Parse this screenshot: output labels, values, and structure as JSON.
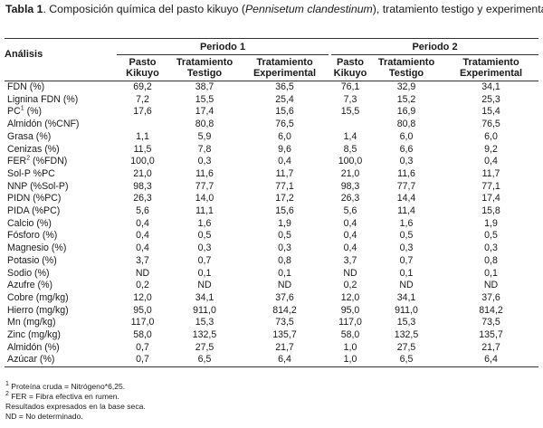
{
  "caption": {
    "label": "Tabla 1",
    "text_before": ". Composición química del pasto kikuyo (",
    "species": "Pennisetum clandestinum",
    "text_after": "), tratamiento testigo y experimental."
  },
  "table": {
    "analysis_header": "Análisis",
    "periods": [
      "Periodo 1",
      "Periodo 2"
    ],
    "columns": [
      [
        "Pasto",
        "Kikuyo"
      ],
      [
        "Tratamiento",
        "Testigo"
      ],
      [
        "Tratamiento",
        "Experimental"
      ],
      [
        "Pasto",
        "Kikuyo"
      ],
      [
        "Tratamiento",
        "Testigo"
      ],
      [
        "Tratamiento",
        "Experimental"
      ]
    ],
    "rows": [
      {
        "name": "FDN (%)",
        "sup": "",
        "name_after": "",
        "values": [
          "69,2",
          "38,7",
          "36,5",
          "76,1",
          "32,9",
          "34,1"
        ]
      },
      {
        "name": "Lignina FDN (%)",
        "sup": "",
        "name_after": "",
        "values": [
          "7,2",
          "15,5",
          "25,4",
          "7,3",
          "15,2",
          "25,3"
        ]
      },
      {
        "name": "PC",
        "sup": "1",
        "name_after": " (%)",
        "values": [
          "17,6",
          "17,4",
          "15,6",
          "15,5",
          "16,9",
          "15,4"
        ]
      },
      {
        "name": "Almidón (%CNF)",
        "sup": "",
        "name_after": "",
        "values": [
          "",
          "80,8",
          "76,5",
          "",
          "80,8",
          "76,5"
        ]
      },
      {
        "name": "Grasa (%)",
        "sup": "",
        "name_after": "",
        "values": [
          "1,1",
          "5,9",
          "6,0",
          "1,4",
          "6,0",
          "6,0"
        ]
      },
      {
        "name": "Cenizas (%)",
        "sup": "",
        "name_after": "",
        "values": [
          "11,5",
          "7,8",
          "9,6",
          "8,5",
          "6,6",
          "9,2"
        ]
      },
      {
        "name": "FER",
        "sup": "2",
        "name_after": " (%FDN)",
        "values": [
          "100,0",
          "0,3",
          "0,4",
          "100,0",
          "0,3",
          "0,4"
        ]
      },
      {
        "name": "Sol-P %PC",
        "sup": "",
        "name_after": "",
        "values": [
          "21,0",
          "11,6",
          "11,7",
          "21,0",
          "11,6",
          "11,7"
        ]
      },
      {
        "name": "NNP (%Sol-P)",
        "sup": "",
        "name_after": "",
        "values": [
          "98,3",
          "77,7",
          "77,1",
          "98,3",
          "77,7",
          "77,1"
        ]
      },
      {
        "name": "PIDN (%PC)",
        "sup": "",
        "name_after": "",
        "values": [
          "26,3",
          "14,0",
          "17,2",
          "26,3",
          "14,4",
          "17,4"
        ]
      },
      {
        "name": "PIDA (%PC)",
        "sup": "",
        "name_after": "",
        "values": [
          "5,6",
          "11,1",
          "15,6",
          "5,6",
          "11,4",
          "15,8"
        ]
      },
      {
        "name": "Calcio (%)",
        "sup": "",
        "name_after": "",
        "values": [
          "0,4",
          "1,6",
          "1,9",
          "0,4",
          "1,6",
          "1,9"
        ]
      },
      {
        "name": "Fósforo (%)",
        "sup": "",
        "name_after": "",
        "values": [
          "0,4",
          "0,5",
          "0,5",
          "0,4",
          "0,5",
          "0,5"
        ]
      },
      {
        "name": "Magnesio (%)",
        "sup": "",
        "name_after": "",
        "values": [
          "0,4",
          "0,3",
          "0,3",
          "0,4",
          "0,3",
          "0,3"
        ]
      },
      {
        "name": "Potasio (%)",
        "sup": "",
        "name_after": "",
        "values": [
          "3,7",
          "0,7",
          "0,8",
          "3,7",
          "0,7",
          "0,8"
        ]
      },
      {
        "name": "Sodio (%)",
        "sup": "",
        "name_after": "",
        "values": [
          "ND",
          "0,1",
          "0,1",
          "ND",
          "0,1",
          "0,1"
        ]
      },
      {
        "name": "Azufre (%)",
        "sup": "",
        "name_after": "",
        "values": [
          "0,2",
          "ND",
          "ND",
          "0,2",
          "ND",
          "ND"
        ]
      },
      {
        "name": "Cobre (mg/kg)",
        "sup": "",
        "name_after": "",
        "values": [
          "12,0",
          "34,1",
          "37,6",
          "12,0",
          "34,1",
          "37,6"
        ]
      },
      {
        "name": "Hierro (mg/kg)",
        "sup": "",
        "name_after": "",
        "values": [
          "95,0",
          "911,0",
          "814,2",
          "95,0",
          "911,0",
          "814,2"
        ]
      },
      {
        "name": "Mn (mg/kg)",
        "sup": "",
        "name_after": "",
        "values": [
          "117,0",
          "15,3",
          "73,5",
          "117,0",
          "15,3",
          "73,5"
        ]
      },
      {
        "name": "Zinc (mg/kg)",
        "sup": "",
        "name_after": "",
        "values": [
          "58,0",
          "132,5",
          "135,7",
          "58,0",
          "132,5",
          "135,7"
        ]
      },
      {
        "name": "Almidón (%)",
        "sup": "",
        "name_after": "",
        "values": [
          "0,7",
          "27,5",
          "21,7",
          "1,0",
          "27,5",
          "21,7"
        ]
      },
      {
        "name": "Azúcar (%)",
        "sup": "",
        "name_after": "",
        "values": [
          "0,7",
          "6,5",
          "6,4",
          "1,0",
          "6,5",
          "6,4"
        ]
      }
    ]
  },
  "notes": {
    "n1_sup": "1",
    "n1_text": "Proteína cruda = Nitrógeno*6,25.",
    "n2_sup": "2",
    "n2_text": "FER = Fibra efectiva en rumen.",
    "n3_text": "Resultados expresados en la base seca.",
    "n4_text": "ND = No determinado."
  }
}
